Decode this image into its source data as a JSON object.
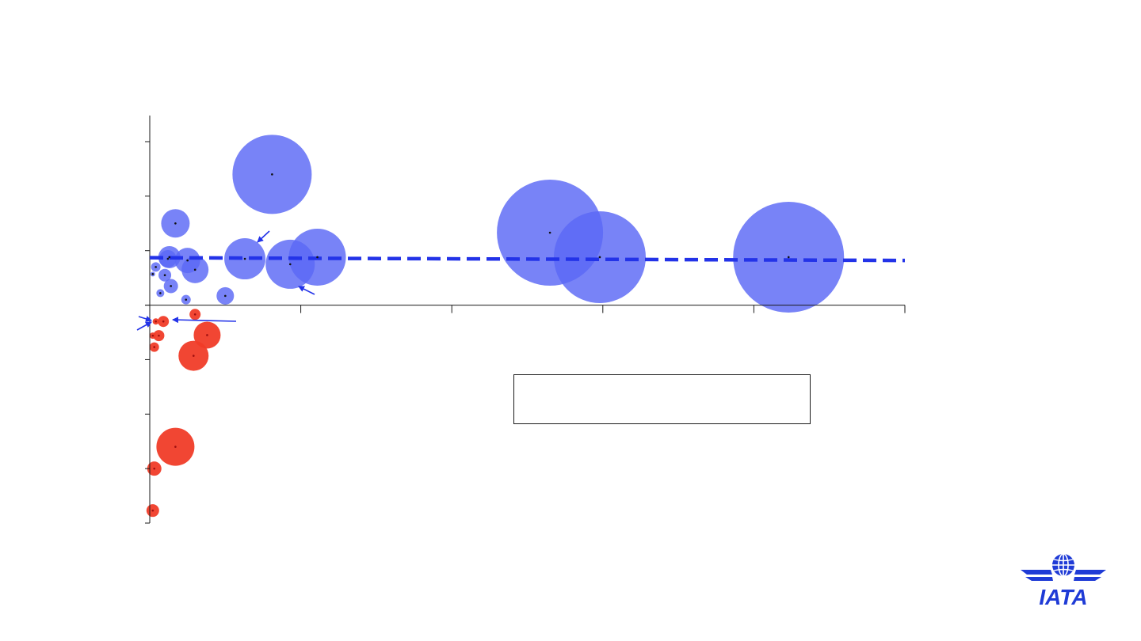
{
  "chart_data": {
    "type": "scatter",
    "variant": "bubble",
    "title": "",
    "xlabel": "",
    "ylabel": "",
    "xlim": [
      0,
      5
    ],
    "ylim": [
      -4,
      3.5
    ],
    "x_ticks": [
      0,
      1,
      2,
      3,
      4,
      5
    ],
    "y_ticks": [
      -4,
      -3,
      -2,
      -1,
      0,
      1,
      2,
      3
    ],
    "grid": false,
    "colors": {
      "positive": "#5a68f5",
      "negative": "#f03c28",
      "trend": "#2333e8",
      "arrow": "#2333e8"
    },
    "series": [
      {
        "color_key": "positive",
        "points": [
          {
            "x": 0.81,
            "y": 2.4,
            "r": 50
          },
          {
            "x": 0.17,
            "y": 1.5,
            "r": 18
          },
          {
            "x": 0.63,
            "y": 0.85,
            "r": 26
          },
          {
            "x": 0.93,
            "y": 0.75,
            "r": 31
          },
          {
            "x": 1.11,
            "y": 0.88,
            "r": 36
          },
          {
            "x": 0.13,
            "y": 0.88,
            "r": 14
          },
          {
            "x": 0.25,
            "y": 0.82,
            "r": 16
          },
          {
            "x": 0.3,
            "y": 0.65,
            "r": 17
          },
          {
            "x": 0.12,
            "y": 0.85,
            "r": 11
          },
          {
            "x": 0.1,
            "y": 0.55,
            "r": 8
          },
          {
            "x": 0.14,
            "y": 0.35,
            "r": 9
          },
          {
            "x": 0.07,
            "y": 0.22,
            "r": 5
          },
          {
            "x": 0.04,
            "y": 0.7,
            "r": 6
          },
          {
            "x": 0.02,
            "y": 0.57,
            "r": 3
          },
          {
            "x": 0.24,
            "y": 0.1,
            "r": 6
          },
          {
            "x": 0.5,
            "y": 0.17,
            "r": 11
          },
          {
            "x": 2.65,
            "y": 1.33,
            "r": 67
          },
          {
            "x": 2.98,
            "y": 0.88,
            "r": 58
          },
          {
            "x": 4.23,
            "y": 0.88,
            "r": 70
          }
        ]
      },
      {
        "color_key": "negative",
        "points": [
          {
            "x": 0.3,
            "y": -0.17,
            "r": 7
          },
          {
            "x": 0.09,
            "y": -0.3,
            "r": 7
          },
          {
            "x": 0.04,
            "y": -0.3,
            "r": 4
          },
          {
            "x": 0.38,
            "y": -0.55,
            "r": 17
          },
          {
            "x": 0.06,
            "y": -0.56,
            "r": 7
          },
          {
            "x": 0.02,
            "y": -0.56,
            "r": 4
          },
          {
            "x": 0.03,
            "y": -0.77,
            "r": 6
          },
          {
            "x": 0.29,
            "y": -0.93,
            "r": 19
          },
          {
            "x": 0.17,
            "y": -2.6,
            "r": 24
          },
          {
            "x": 0.03,
            "y": -3.0,
            "r": 9
          },
          {
            "x": 0.02,
            "y": -3.77,
            "r": 8
          }
        ]
      }
    ],
    "trendline": {
      "x": [
        0,
        5
      ],
      "y": [
        0.87,
        0.82
      ]
    },
    "legend": {
      "entries": []
    }
  },
  "branding": {
    "logo": "IATA"
  }
}
